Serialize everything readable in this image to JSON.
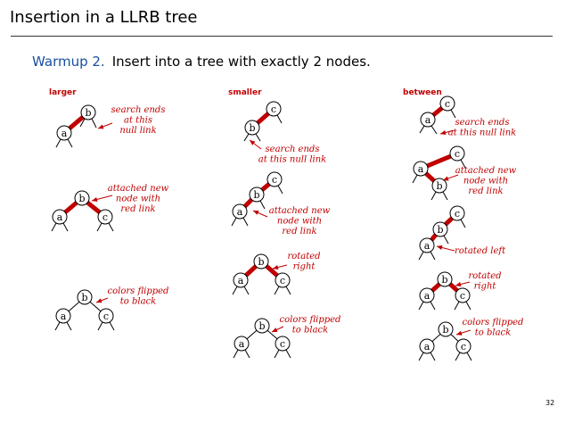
{
  "slide": {
    "title": "Insertion in a LLRB tree",
    "subtitle_lead": "Warmup 2.",
    "subtitle_rest": "Insert into a tree with exactly 2 nodes.",
    "page_number": "32"
  },
  "columns": {
    "larger": "larger",
    "smaller": "smaller",
    "between": "between"
  },
  "annotations": {
    "larger_1": [
      "search ends",
      "at this",
      "null link"
    ],
    "larger_2": [
      "attached new",
      "node with",
      "red link"
    ],
    "larger_3": [
      "colors flipped",
      "to black"
    ],
    "smaller_1": [
      "search ends",
      "at this null link"
    ],
    "smaller_2": [
      "attached new",
      "node with",
      "red link"
    ],
    "smaller_3": [
      "rotated",
      "right"
    ],
    "smaller_4": [
      "colors flipped",
      "to black"
    ],
    "between_1": [
      "search ends",
      "at this null link"
    ],
    "between_2": [
      "attached new",
      "node with",
      "red link"
    ],
    "between_3": [
      "rotated left"
    ],
    "between_4": [
      "rotated",
      "right"
    ],
    "between_5": [
      "colors flipped",
      "to black"
    ]
  },
  "nodes": {
    "a": "a",
    "b": "b",
    "c": "c"
  },
  "colors": {
    "red_link": "#c00000",
    "title_accent": "#1a4fa0"
  }
}
